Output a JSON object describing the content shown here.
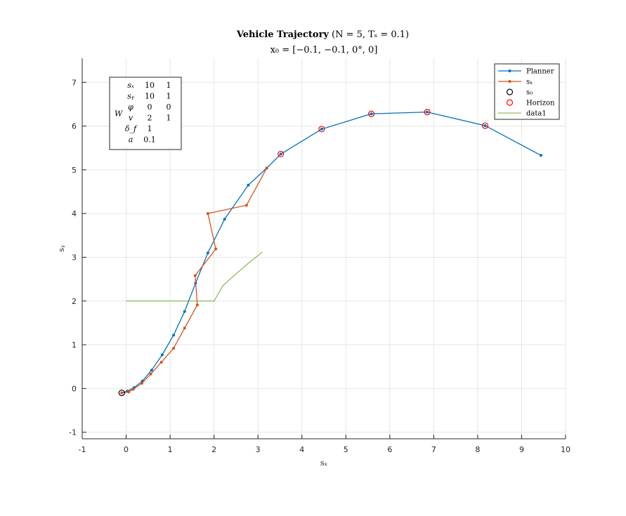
{
  "chart_data": {
    "type": "line",
    "title": "Vehicle Trajectory (N = 5, T_s = 0.1)",
    "title_main": "Vehicle Trajectory",
    "title_params": "(N = 5, Tₛ = 0.1)",
    "subtitle": "x₀ = [−0.1, −0.1, 0°, 0]",
    "xlabel": "sₓ",
    "ylabel": "sᵧ",
    "xlim": [
      -1,
      10
    ],
    "ylim": [
      -1.15,
      7.55
    ],
    "xticks": [
      -1,
      0,
      1,
      2,
      3,
      4,
      5,
      6,
      7,
      8,
      9,
      10
    ],
    "yticks": [
      -1,
      0,
      1,
      2,
      3,
      4,
      5,
      6,
      7
    ],
    "grid": true,
    "legend_position": "top-right",
    "series": [
      {
        "name": "Planner",
        "color": "#0072BD",
        "marker": "dot",
        "x": [
          -0.1,
          0.03,
          0.18,
          0.37,
          0.58,
          0.82,
          1.08,
          1.33,
          1.58,
          1.86,
          2.24,
          2.78,
          3.2,
          3.52,
          4.45,
          5.58,
          6.85,
          8.17,
          9.44
        ],
        "y": [
          -0.1,
          -0.06,
          0.02,
          0.17,
          0.42,
          0.77,
          1.22,
          1.76,
          2.41,
          3.1,
          3.87,
          4.65,
          5.04,
          5.36,
          5.93,
          6.28,
          6.32,
          6.01,
          5.33
        ]
      },
      {
        "name": "s_k",
        "color": "#D95319",
        "marker": "dot",
        "x": [
          -0.1,
          0.06,
          0.16,
          0.36,
          0.56,
          0.8,
          1.08,
          1.33,
          1.62,
          1.57,
          2.04,
          1.86,
          2.74,
          3.2
        ],
        "y": [
          -0.1,
          -0.08,
          -0.02,
          0.12,
          0.33,
          0.6,
          0.92,
          1.38,
          1.91,
          2.58,
          3.19,
          4.0,
          4.19,
          5.04
        ]
      },
      {
        "name": "s_0",
        "color": "#000000",
        "marker": "open-circle",
        "x": [
          -0.1
        ],
        "y": [
          -0.1
        ]
      },
      {
        "name": "Horizon",
        "color": "#FF0000",
        "marker": "open-circle",
        "x": [
          3.52,
          4.45,
          5.58,
          6.85,
          8.17
        ],
        "y": [
          5.36,
          5.93,
          6.28,
          6.32,
          6.01
        ]
      },
      {
        "name": "data1",
        "color": "#77AC30",
        "marker": "none",
        "x": [
          0.0,
          1.5,
          2.0,
          2.2,
          2.5,
          2.8,
          3.1
        ],
        "y": [
          2.0,
          2.0,
          2.0,
          2.35,
          2.62,
          2.88,
          3.12
        ]
      }
    ],
    "legend_labels": [
      "Planner",
      "sₖ",
      "s₀",
      "Horizon",
      "data1"
    ],
    "annotation": {
      "label": "W",
      "rows": [
        [
          "sₓ",
          "10",
          "1"
        ],
        [
          "sᵧ",
          "10",
          "1"
        ],
        [
          "φ",
          "0",
          "0"
        ],
        [
          "v",
          "2",
          "1"
        ],
        [
          "δ_f",
          "1",
          ""
        ],
        [
          "a",
          "0.1",
          ""
        ]
      ]
    }
  }
}
